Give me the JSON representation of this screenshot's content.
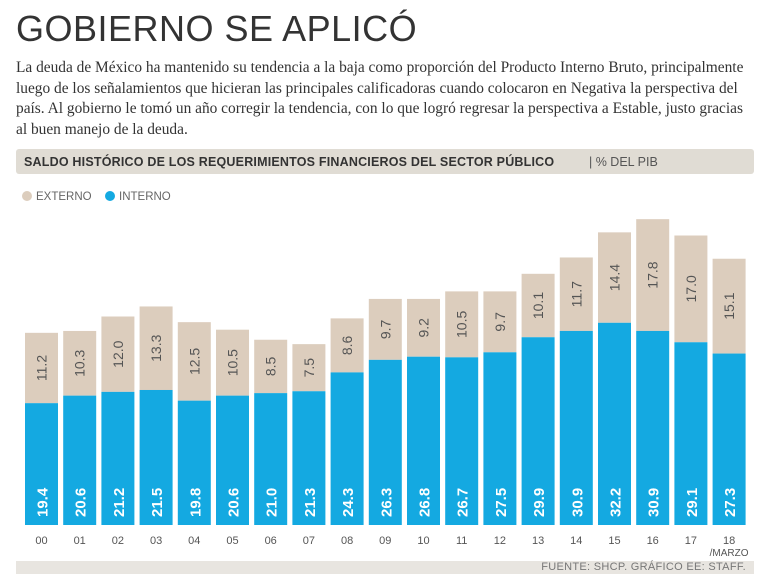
{
  "header": {
    "title": "GOBIERNO SE APLICÓ",
    "description": "La deuda de México ha mantenido su tendencia a la baja como proporción del Producto Interno Bruto, principalmente luego de los señalamientos que hicieran las principales calificadoras cuando colocaron en Negativa la perspectiva del país. Al gobierno le tomó un año corregir la tendencia, con lo que logró regresar la perspectiva a Estable, justo gracias al buen manejo de la deuda."
  },
  "chart_header": {
    "title": "SALDO HISTÓRICO DE LOS REQUERIMIENTOS FINANCIEROS DEL SECTOR PÚBLICO",
    "unit": "| % DEL PIB"
  },
  "colors": {
    "interno": "#14a9e1",
    "externo": "#dccdbd",
    "value_text": "#ffffff",
    "externo_text": "#555555"
  },
  "chart_data": {
    "type": "bar",
    "stacked": true,
    "title": "SALDO HISTÓRICO DE LOS REQUERIMIENTOS FINANCIEROS DEL SECTOR PÚBLICO",
    "ylabel": "% DEL PIB",
    "categories": [
      "00",
      "01",
      "02",
      "03",
      "04",
      "05",
      "06",
      "07",
      "08",
      "09",
      "10",
      "11",
      "12",
      "13",
      "14",
      "15",
      "16",
      "17",
      "18"
    ],
    "category_note": "/MARZO",
    "series": [
      {
        "name": "INTERNO",
        "values": [
          19.4,
          20.6,
          21.2,
          21.5,
          19.8,
          20.6,
          21.0,
          21.3,
          24.3,
          26.3,
          26.8,
          26.7,
          27.5,
          29.9,
          30.9,
          32.2,
          30.9,
          29.1,
          27.3
        ]
      },
      {
        "name": "EXTERNO",
        "values": [
          11.2,
          10.3,
          12.0,
          13.3,
          12.5,
          10.5,
          8.5,
          7.5,
          8.6,
          9.7,
          9.2,
          10.5,
          9.7,
          10.1,
          11.7,
          14.4,
          17.8,
          17.0,
          15.1
        ]
      }
    ],
    "value_labels_interno": [
      "19.4",
      "20.6",
      "21.2",
      "21.5",
      "19.8",
      "20.6",
      "21.0",
      "21.3",
      "24.3",
      "26.3",
      "26.8",
      "26.7",
      "27.5",
      "29.9",
      "30.9",
      "32.2",
      "30.9",
      "29.1",
      "27.3"
    ],
    "value_labels_externo": [
      "11.2",
      "10.3",
      "12.0",
      "13.3",
      "12.5",
      "10.5",
      "8.5",
      "7.5",
      "8.6",
      "9.7",
      "9.2",
      "10.5",
      "9.7",
      "10.1",
      "11.7",
      "14.4",
      "17.8",
      "17.0",
      "15.1"
    ],
    "legend": [
      "EXTERNO",
      "INTERNO"
    ],
    "ylim": [
      0,
      55
    ]
  },
  "footer": {
    "source": "FUENTE: SHCP. GRÁFICO EE: STAFF."
  }
}
